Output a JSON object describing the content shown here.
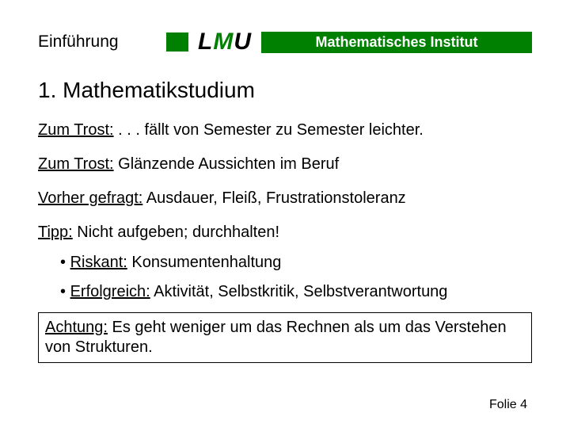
{
  "header": {
    "section": "Einführung",
    "logo_letters": {
      "l": "L",
      "m": "M",
      "u": "U"
    },
    "banner": "Mathematisches Institut"
  },
  "title": "1.  Mathematikstudium",
  "lines": {
    "l1_u": "Zum Trost:",
    "l1_rest": " . . . fällt von Semester zu Semester leichter.",
    "l2_u": "Zum Trost:",
    "l2_rest": " Glänzende Aussichten im Beruf",
    "l3_u": "Vorher gefragt:",
    "l3_rest": " Ausdauer, Fleiß, Frustrationstoleranz",
    "l4_u": "Tipp:",
    "l4_rest": " Nicht aufgeben; durchhalten!"
  },
  "bullets": {
    "b1_u": "Riskant:",
    "b1_rest": " Konsumentenhaltung",
    "b2_u": "Erfolgreich:",
    "b2_rest": " Aktivität, Selbstkritik, Selbstverantwortung"
  },
  "box": {
    "u": "Achtung:",
    "rest": " Es geht weniger um das Rechnen als um das Verstehen von Strukturen."
  },
  "footer": "Folie 4",
  "colors": {
    "green": "#008000",
    "text": "#000000",
    "bg": "#ffffff",
    "banner_text": "#ffffff"
  }
}
